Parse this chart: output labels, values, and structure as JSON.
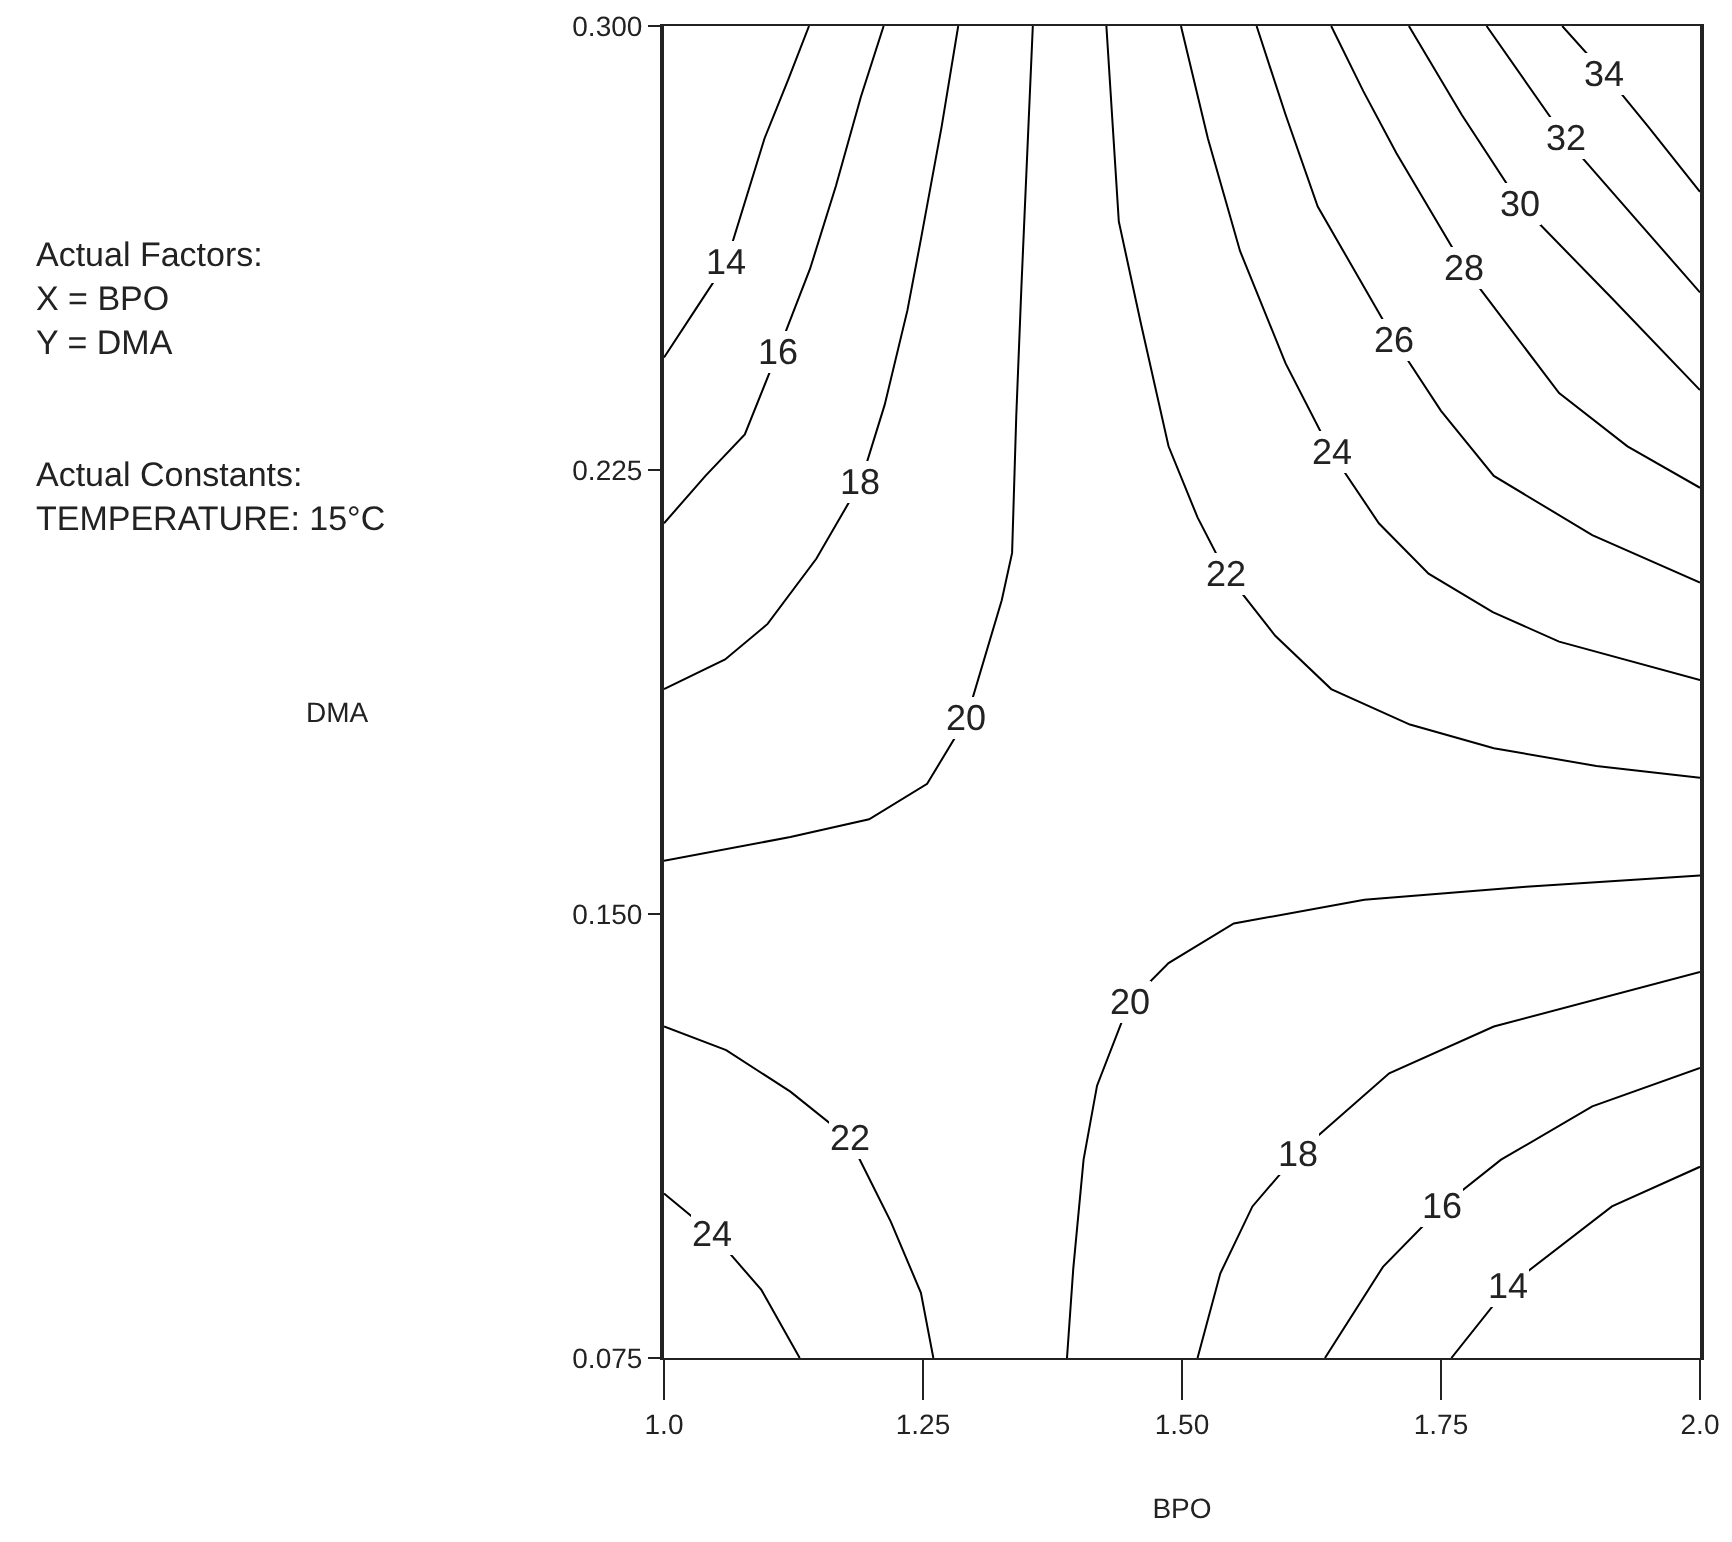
{
  "chart_data": {
    "type": "line",
    "xlabel": "BPO",
    "annotations": [
      "Actual Factors:\nX = BPO\nY = DMA",
      "Actual Constants:\nTEMPERATURE: 15°C",
      "DMA"
    ],
    "xlim": [
      1,
      2
    ],
    "xticks": [
      {
        "value": 1,
        "label": "1.0"
      },
      1.25,
      {
        "value": 1.5,
        "label": "1.50"
      },
      1.75,
      {
        "value": 2,
        "label": "2.0"
      }
    ],
    "ylim": [
      0.075,
      0.3
    ],
    "yticks": [
      0.075,
      {
        "value": 0.15,
        "label": "0.150"
      },
      0.225,
      {
        "value": 0.3,
        "label": "0.300"
      }
    ],
    "grid": false,
    "legend": false,
    "marker": "none",
    "line_style": "solid",
    "series": [
      {
        "name": "14",
        "color": "#000000",
        "x": [
          1.0,
          1.03,
          1.06,
          1.097,
          1.12,
          1.14
        ],
        "values": [
          0.244,
          0.252,
          0.26,
          0.281,
          0.291,
          0.3
        ]
      },
      {
        "name": "16",
        "color": "#000000",
        "x": [
          1.0,
          1.04,
          1.078,
          1.11,
          1.141,
          1.166,
          1.19,
          1.212
        ],
        "values": [
          0.216,
          0.224,
          0.231,
          0.245,
          0.259,
          0.273,
          0.288,
          0.3
        ]
      },
      {
        "name": "18",
        "color": "#000000",
        "x": [
          1.0,
          1.059,
          1.1,
          1.147,
          1.19,
          1.213,
          1.235,
          1.248,
          1.268,
          1.284
        ],
        "values": [
          0.188,
          0.193,
          0.199,
          0.21,
          0.223,
          0.236,
          0.252,
          0.264,
          0.283,
          0.3
        ]
      },
      {
        "name": "20",
        "color": "#000000",
        "x": [
          1.0,
          1.122,
          1.198,
          1.254,
          1.292,
          1.326,
          1.336,
          1.34,
          1.345,
          1.356
        ],
        "values": [
          0.159,
          0.163,
          0.166,
          0.172,
          0.183,
          0.203,
          0.211,
          0.234,
          0.256,
          0.3
        ]
      },
      {
        "name": "22",
        "color": "#000000",
        "x": [
          1.427,
          1.439,
          1.46,
          1.487,
          1.515,
          1.543,
          1.59,
          1.644,
          1.72,
          1.801,
          1.9,
          2.0
        ],
        "values": [
          0.3,
          0.267,
          0.25,
          0.229,
          0.217,
          0.2075,
          0.197,
          0.188,
          0.182,
          0.178,
          0.175,
          0.173
        ]
      },
      {
        "name": "24",
        "color": "#000000",
        "x": [
          1.499,
          1.525,
          1.556,
          1.6,
          1.644,
          1.69,
          1.738,
          1.8,
          1.864,
          2.0
        ],
        "values": [
          0.3,
          0.281,
          0.262,
          0.243,
          0.228,
          0.216,
          0.2075,
          0.201,
          0.196,
          0.1895
        ]
      },
      {
        "name": "26",
        "color": "#000000",
        "x": [
          1.572,
          1.6,
          1.631,
          1.705,
          1.75,
          1.801,
          1.896,
          2.0
        ],
        "values": [
          0.3,
          0.285,
          0.2695,
          0.247,
          0.235,
          0.224,
          0.214,
          0.206
        ]
      },
      {
        "name": "28",
        "color": "#000000",
        "x": [
          1.644,
          1.675,
          1.707,
          1.773,
          1.864,
          1.93,
          2.0
        ],
        "values": [
          0.3,
          0.289,
          0.2785,
          0.259,
          0.238,
          0.229,
          0.222
        ]
      },
      {
        "name": "30",
        "color": "#000000",
        "x": [
          1.719,
          1.77,
          1.826,
          1.915,
          2.0
        ],
        "values": [
          0.3,
          0.285,
          0.27,
          0.254,
          0.2385
        ]
      },
      {
        "name": "32",
        "color": "#000000",
        "x": [
          1.794,
          1.87,
          1.94,
          2.0
        ],
        "values": [
          0.3,
          0.281,
          0.267,
          0.255
        ]
      },
      {
        "name": "34",
        "color": "#000000",
        "x": [
          1.867,
          1.908,
          1.95,
          2.0
        ],
        "values": [
          0.3,
          0.292,
          0.283,
          0.272
        ]
      },
      {
        "name": "22",
        "color": "#000000",
        "x": [
          1.0,
          1.06,
          1.122,
          1.179,
          1.219,
          1.248,
          1.26
        ],
        "values": [
          0.131,
          0.127,
          0.12,
          0.112,
          0.098,
          0.086,
          0.075
        ]
      },
      {
        "name": "24",
        "color": "#000000",
        "x": [
          1.0,
          1.047,
          1.094,
          1.131
        ],
        "values": [
          0.1028,
          0.096,
          0.0865,
          0.075
        ]
      },
      {
        "name": "20",
        "color": "#000000",
        "x": [
          1.389,
          1.395,
          1.405,
          1.418,
          1.449,
          1.487,
          1.55,
          1.676,
          1.832,
          2.0
        ],
        "values": [
          0.075,
          0.09,
          0.1085,
          0.121,
          0.135,
          0.1417,
          0.1484,
          0.1524,
          0.1546,
          0.1565
        ]
      },
      {
        "name": "18",
        "color": "#000000",
        "x": [
          1.515,
          1.537,
          1.568,
          1.612,
          1.7,
          1.801,
          2.0
        ],
        "values": [
          0.075,
          0.0893,
          0.1006,
          0.1096,
          0.1231,
          0.131,
          0.1402
        ]
      },
      {
        "name": "16",
        "color": "#000000",
        "x": [
          1.638,
          1.694,
          1.751,
          1.808,
          1.896,
          2.0
        ],
        "values": [
          0.075,
          0.0904,
          0.1006,
          0.1085,
          0.1175,
          0.124
        ]
      },
      {
        "name": "14",
        "color": "#000000",
        "x": [
          1.76,
          1.815,
          1.915,
          2.0
        ],
        "values": [
          0.075,
          0.0871,
          0.1006,
          0.1073
        ]
      }
    ]
  }
}
